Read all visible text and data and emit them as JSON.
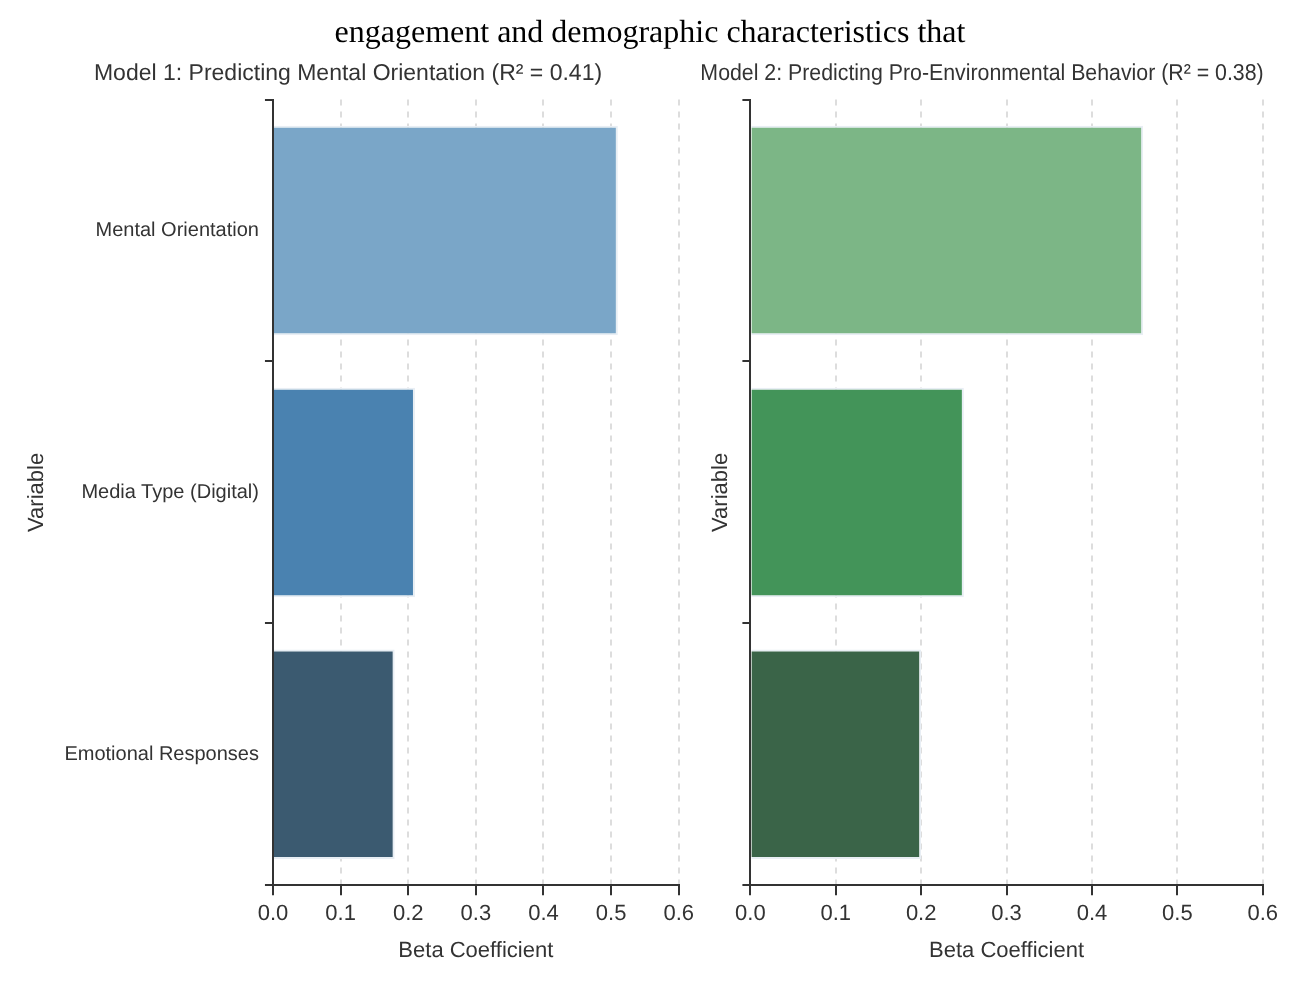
{
  "chart_data": [
    {
      "type": "bar",
      "orientation": "horizontal",
      "title": "Model 1: Predicting Mental Orientation (R² = 0.41)",
      "xlabel": "Beta Coefficient",
      "ylabel": "Variable",
      "annotations": [
        "engagement and demographic characteristics that"
      ],
      "categories": [
        "Mental Orientation",
        "Media Type (Digital)",
        "Emotional Responses"
      ],
      "values": [
        0.51,
        0.21,
        0.18
      ],
      "colors": [
        "#7aa6c8",
        "#4a82b0",
        "#3b5a70"
      ],
      "xlim": [
        0,
        0.6
      ],
      "xticks": [
        {
          "value": 0,
          "label": "0.0"
        },
        0.1,
        0.2,
        0.3,
        0.4,
        0.5,
        0.6
      ],
      "grid": "x"
    },
    {
      "type": "bar",
      "orientation": "horizontal",
      "title": "Model 2: Predicting Pro-Environmental Behavior (R² = 0.38)",
      "xlabel": "Beta Coefficient",
      "ylabel": "Variable",
      "categories": [
        null,
        null,
        null
      ],
      "values": [
        0.46,
        0.25,
        0.2
      ],
      "colors": [
        "#7cb686",
        "#439459",
        "#3a6448"
      ],
      "xlim": [
        0,
        0.6
      ],
      "xticks": [
        {
          "value": 0,
          "label": "0.0"
        },
        0.1,
        0.2,
        0.3,
        0.4,
        0.5,
        0.6
      ],
      "grid": "x",
      "tick_labels": "x"
    }
  ]
}
